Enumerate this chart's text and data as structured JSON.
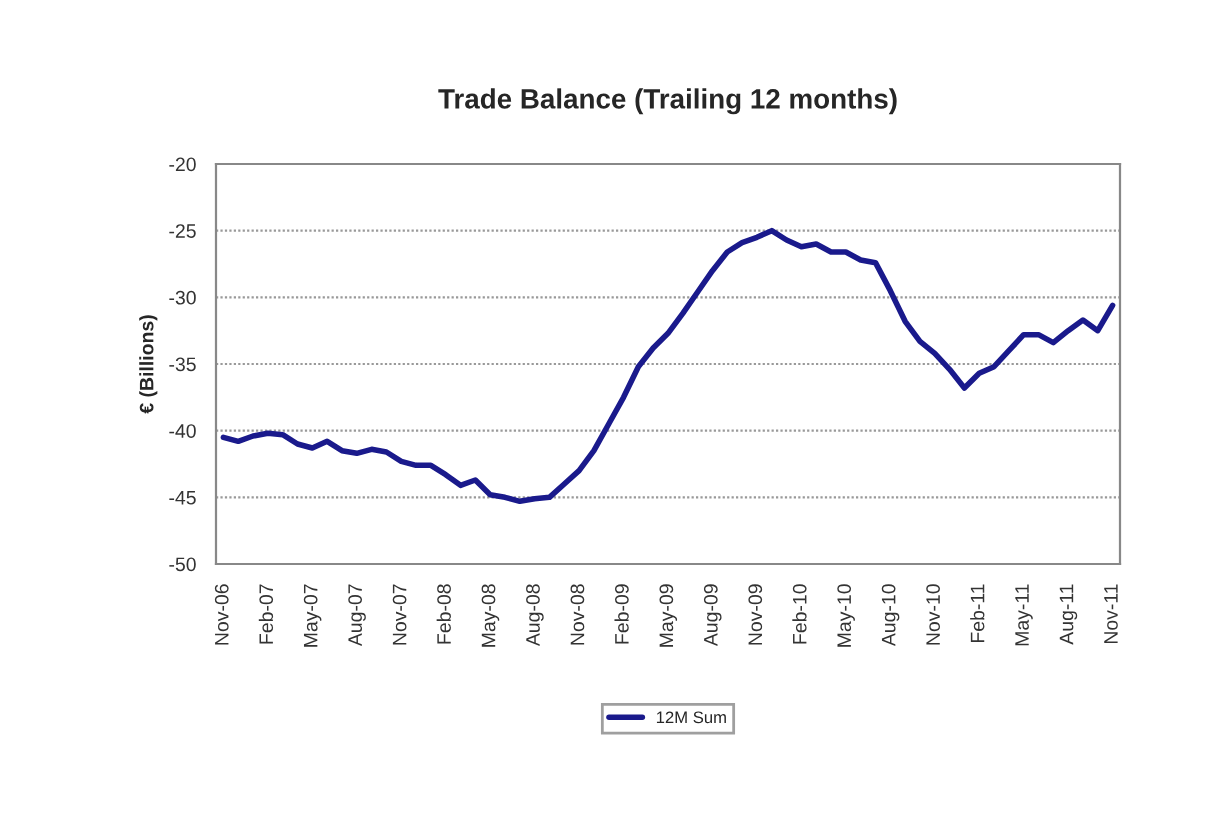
{
  "chart_data": {
    "type": "line",
    "title": "Trade Balance (Trailing 12 months)",
    "ylabel": "€ (Billions)",
    "categories": [
      "Nov-06",
      null,
      null,
      "Feb-07",
      null,
      null,
      "May-07",
      null,
      null,
      "Aug-07",
      null,
      null,
      "Nov-07",
      null,
      null,
      "Feb-08",
      null,
      null,
      "May-08",
      null,
      null,
      "Aug-08",
      null,
      null,
      "Nov-08",
      null,
      null,
      "Feb-09",
      null,
      null,
      "May-09",
      null,
      null,
      "Aug-09",
      null,
      null,
      "Nov-09",
      null,
      null,
      "Feb-10",
      null,
      null,
      "May-10",
      null,
      null,
      "Aug-10",
      null,
      null,
      "Nov-10",
      null,
      null,
      "Feb-11",
      null,
      null,
      "May-11",
      null,
      null,
      "Aug-11",
      null,
      null,
      "Nov-11"
    ],
    "series": [
      {
        "name": "12M Sum",
        "color": "#1a1a8c",
        "values": [
          -40.5,
          -40.8,
          -40.4,
          -40.2,
          -40.3,
          -41.0,
          -41.3,
          -40.8,
          -41.5,
          -41.7,
          -41.4,
          -41.6,
          -42.3,
          -42.6,
          -42.6,
          -43.3,
          -44.1,
          -43.7,
          -44.8,
          -45.0,
          -45.3,
          -45.1,
          -45.0,
          -44.0,
          -43.0,
          -41.5,
          -39.5,
          -37.5,
          -35.2,
          -33.8,
          -32.7,
          -31.2,
          -29.6,
          -28.0,
          -26.6,
          -25.9,
          -25.5,
          -25.0,
          -25.7,
          -26.2,
          -26.0,
          -26.6,
          -26.6,
          -27.2,
          -27.4,
          -29.5,
          -31.8,
          -33.3,
          -34.2,
          -35.4,
          -36.8,
          -35.7,
          -35.2,
          -34.0,
          -32.8,
          -32.8,
          -33.4,
          -32.5,
          -31.7,
          -32.5,
          -30.6
        ]
      }
    ],
    "ylim": [
      -50,
      -20
    ],
    "yticks": [
      -50,
      -45,
      -40,
      -35,
      -30,
      -25,
      -20
    ],
    "grid": "y",
    "legend": "bottom",
    "marker": "none",
    "line_style": "solid"
  }
}
